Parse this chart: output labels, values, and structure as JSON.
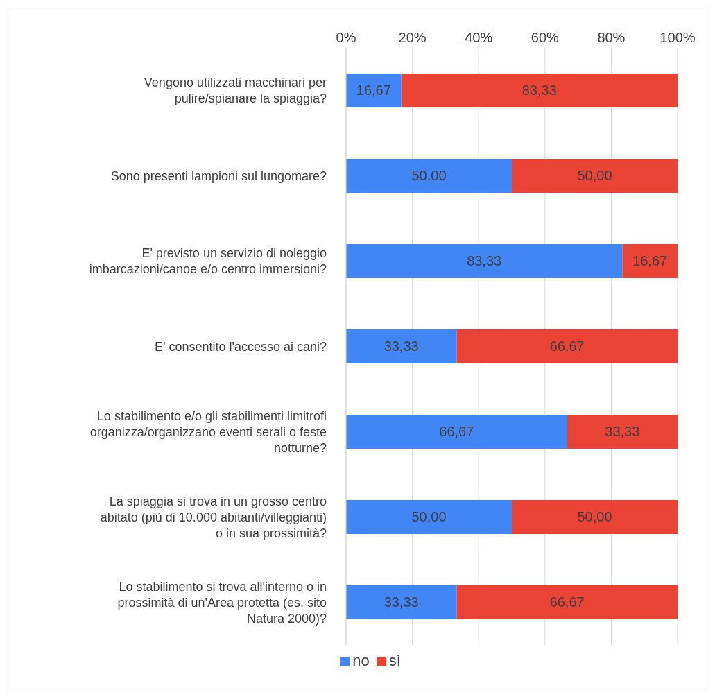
{
  "chart_data": {
    "type": "bar",
    "orientation": "horizontal",
    "stacked": true,
    "categories": [
      "Vengono utilizzati macchinari per pulire/spianare la spiaggia?",
      "Sono presenti lampioni sul lungomare?",
      "E' previsto un servizio di noleggio imbarcazioni/canoe e/o centro immersioni?",
      "E' consentito l'accesso ai cani?",
      "Lo stabilimento e/o gli stabilimenti limitrofi organizza/organizzano eventi serali o feste notturne?",
      "La spiaggia si trova in un grosso centro abitato (più di 10.000 abitanti/villeggianti) o in sua prossimità?",
      "Lo stabilimento si trova all'interno o in prossimità di un'Area protetta (es. sito Natura 2000)?"
    ],
    "series": [
      {
        "name": "no",
        "color": "#4285f4",
        "values": [
          16.67,
          50,
          83.33,
          33.33,
          66.67,
          50,
          33.33
        ],
        "value_labels": [
          "16,67",
          "50,00",
          "83,33",
          "33,33",
          "66,67",
          "50,00",
          "33,33"
        ]
      },
      {
        "name": "sì",
        "color": "#ea4335",
        "values": [
          83.33,
          50,
          16.67,
          66.67,
          33.33,
          50,
          66.67
        ],
        "value_labels": [
          "83,33",
          "50,00",
          "16,67",
          "66,67",
          "33,33",
          "50,00",
          "66,67"
        ]
      }
    ],
    "xlim": [
      0,
      100
    ],
    "xticks": [
      {
        "value": 0,
        "label": "0%"
      },
      {
        "value": 20,
        "label": "20%"
      },
      {
        "value": 40,
        "label": "40%"
      },
      {
        "value": 60,
        "label": "60%"
      },
      {
        "value": 80,
        "label": "80%"
      },
      {
        "value": 100,
        "label": "100%"
      }
    ],
    "grid": "x",
    "legend": "bottom"
  }
}
